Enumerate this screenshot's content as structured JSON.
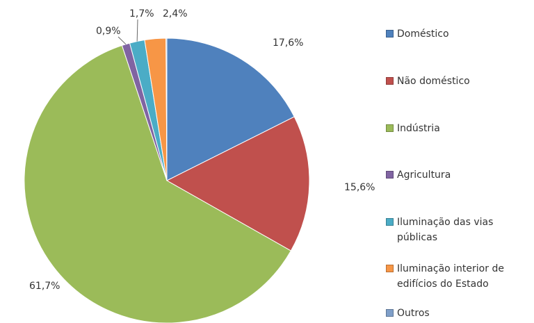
{
  "chart_data": {
    "type": "pie",
    "categories": [
      "Doméstico",
      "Não doméstico",
      "Indústria",
      "Agricultura",
      "Iluminação das vias públicas",
      "Iluminação interior de edifícios do Estado",
      "Outros"
    ],
    "values": [
      17.6,
      15.6,
      61.7,
      0.9,
      1.7,
      2.4,
      0.1
    ],
    "value_labels": [
      "17,6%",
      "15,6%",
      "61,7%",
      "0,9%",
      "1,7%",
      "2,4%",
      null
    ],
    "colors": [
      "#4f81bd",
      "#c0504d",
      "#9bbb59",
      "#8064a2",
      "#4bacc6",
      "#f79646",
      "#7f9fc9"
    ],
    "legend": "right"
  }
}
